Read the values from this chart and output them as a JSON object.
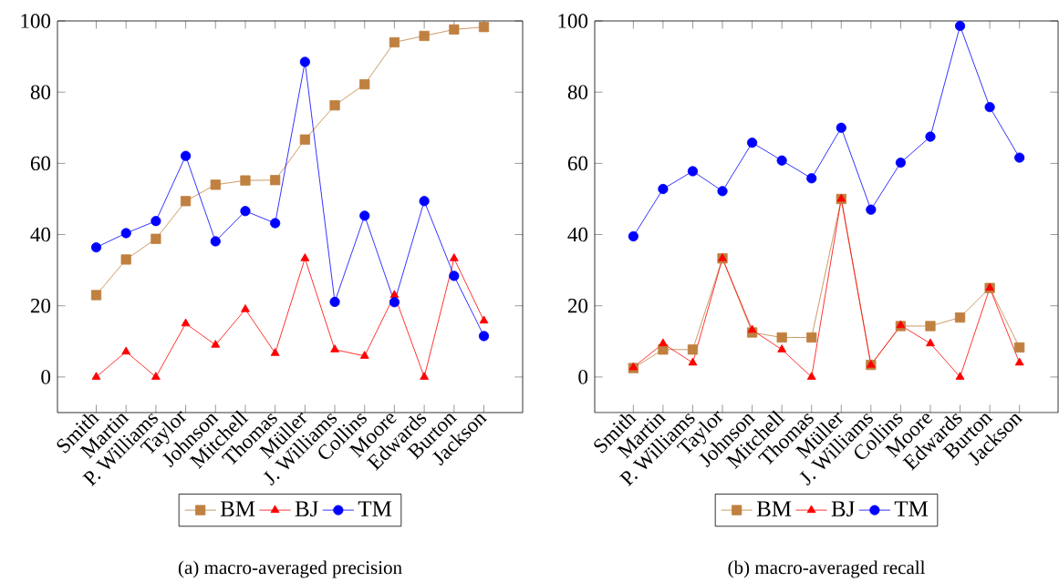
{
  "chart_data": [
    {
      "type": "line",
      "title": "(a) macro-averaged precision",
      "categories": [
        "Smith",
        "Martin",
        "P. Williams",
        "Taylor",
        "Johnson",
        "Mitchell",
        "Thomas",
        "Müller",
        "J. Williams",
        "Collins",
        "Moore",
        "Edwards",
        "Burton",
        "Jackson"
      ],
      "ylim": [
        -10,
        100
      ],
      "yticks": [
        0,
        20,
        40,
        60,
        80,
        100
      ],
      "legend": "bottom",
      "series": [
        {
          "name": "BM",
          "color": "#bf8040",
          "marker": "square",
          "values": [
            23,
            33,
            38.8,
            49.4,
            54,
            55.2,
            55.3,
            66.7,
            76.3,
            82.2,
            94,
            95.8,
            97.6,
            98.3
          ]
        },
        {
          "name": "BJ",
          "color": "#ff0000",
          "marker": "triangle",
          "values": [
            0,
            7.1,
            0,
            15,
            9,
            19,
            6.7,
            33.3,
            7.7,
            5.9,
            23,
            0,
            33.3,
            15.8
          ]
        },
        {
          "name": "TM",
          "color": "#0000ff",
          "marker": "circle",
          "values": [
            36.4,
            40.4,
            43.8,
            62.1,
            38.1,
            46.6,
            43.2,
            88.5,
            21.1,
            45.3,
            21,
            49.4,
            28.4,
            11.5
          ]
        }
      ]
    },
    {
      "type": "line",
      "title": "(b) macro-averaged recall",
      "categories": [
        "Smith",
        "Martin",
        "P. Williams",
        "Taylor",
        "Johnson",
        "Mitchell",
        "Thomas",
        "Müller",
        "J. Williams",
        "Collins",
        "Moore",
        "Edwards",
        "Burton",
        "Jackson"
      ],
      "ylim": [
        -10,
        100
      ],
      "yticks": [
        0,
        20,
        40,
        60,
        80,
        100
      ],
      "legend": "bottom",
      "series": [
        {
          "name": "BM",
          "color": "#bf8040",
          "marker": "square",
          "values": [
            2.5,
            7.7,
            7.7,
            33.3,
            12.5,
            11.1,
            11.1,
            50,
            3.4,
            14.3,
            14.3,
            16.7,
            25,
            8.3
          ]
        },
        {
          "name": "BJ",
          "color": "#ff0000",
          "marker": "triangle",
          "values": [
            2.7,
            9.4,
            4,
            33.3,
            13.2,
            7.7,
            0,
            50,
            3.4,
            14.5,
            9.4,
            0,
            25,
            4
          ]
        },
        {
          "name": "TM",
          "color": "#0000ff",
          "marker": "circle",
          "values": [
            39.5,
            52.8,
            57.8,
            52.2,
            65.8,
            60.8,
            55.8,
            70,
            47,
            60.2,
            67.5,
            98.6,
            75.8,
            61.6
          ]
        }
      ]
    }
  ]
}
